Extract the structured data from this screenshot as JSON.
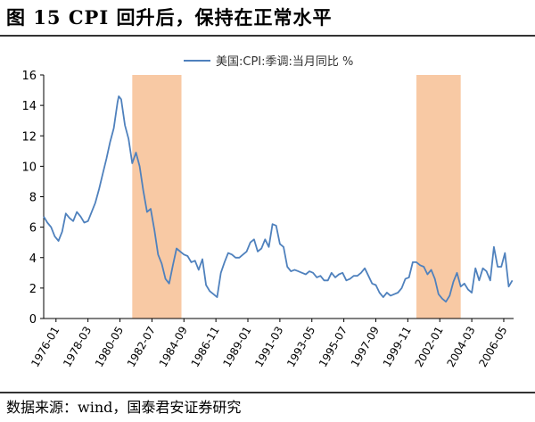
{
  "page": {
    "title": "图 15   CPI 回升后，保持在正常水平",
    "source": "数据来源：wind，国泰君安证券研究"
  },
  "colors": {
    "line": "#4f81bd",
    "shade": "#f8c9a4",
    "axis": "#000000",
    "rule": "#333333"
  },
  "chart_data": {
    "type": "line",
    "title": "",
    "xlabel": "",
    "ylabel": "",
    "ylim": [
      0,
      16
    ],
    "yticks": [
      0,
      2,
      4,
      6,
      8,
      10,
      12,
      14,
      16
    ],
    "xlim": [
      "1975-03",
      "2007-01"
    ],
    "xticks": [
      "1976-01",
      "1978-03",
      "1980-05",
      "1982-07",
      "1984-09",
      "1986-11",
      "1989-01",
      "1991-03",
      "1993-05",
      "1995-07",
      "1997-09",
      "1999-11",
      "2002-01",
      "2004-03",
      "2006-05"
    ],
    "grid": false,
    "legend": "top-center",
    "shaded_periods": [
      {
        "start": "1981-03",
        "end": "1984-07"
      },
      {
        "start": "2000-06",
        "end": "2003-06"
      }
    ],
    "series": [
      {
        "name": "美国:CPI:季调:当月同比 %",
        "points": [
          [
            "1975-03",
            6.7
          ],
          [
            "1975-06",
            6.3
          ],
          [
            "1975-09",
            6.0
          ],
          [
            "1975-12",
            5.4
          ],
          [
            "1976-03",
            5.1
          ],
          [
            "1976-06",
            5.7
          ],
          [
            "1976-09",
            6.9
          ],
          [
            "1976-12",
            6.6
          ],
          [
            "1977-03",
            6.4
          ],
          [
            "1977-06",
            7.0
          ],
          [
            "1977-09",
            6.7
          ],
          [
            "1977-12",
            6.3
          ],
          [
            "1978-03",
            6.4
          ],
          [
            "1978-06",
            7.0
          ],
          [
            "1978-09",
            7.6
          ],
          [
            "1978-12",
            8.5
          ],
          [
            "1979-03",
            9.5
          ],
          [
            "1979-06",
            10.5
          ],
          [
            "1979-09",
            11.6
          ],
          [
            "1979-12",
            12.5
          ],
          [
            "1980-03",
            14.2
          ],
          [
            "1980-04",
            14.6
          ],
          [
            "1980-06",
            14.4
          ],
          [
            "1980-09",
            12.7
          ],
          [
            "1980-12",
            11.8
          ],
          [
            "1981-03",
            10.2
          ],
          [
            "1981-06",
            10.9
          ],
          [
            "1981-09",
            10.0
          ],
          [
            "1981-12",
            8.4
          ],
          [
            "1982-03",
            7.0
          ],
          [
            "1982-06",
            7.2
          ],
          [
            "1982-09",
            5.8
          ],
          [
            "1982-12",
            4.2
          ],
          [
            "1983-03",
            3.6
          ],
          [
            "1983-06",
            2.6
          ],
          [
            "1983-09",
            2.3
          ],
          [
            "1983-12",
            3.5
          ],
          [
            "1984-03",
            4.6
          ],
          [
            "1984-06",
            4.4
          ],
          [
            "1984-09",
            4.2
          ],
          [
            "1984-12",
            4.1
          ],
          [
            "1985-03",
            3.7
          ],
          [
            "1985-06",
            3.8
          ],
          [
            "1985-09",
            3.2
          ],
          [
            "1985-12",
            3.9
          ],
          [
            "1986-03",
            2.2
          ],
          [
            "1986-06",
            1.8
          ],
          [
            "1986-09",
            1.6
          ],
          [
            "1986-12",
            1.4
          ],
          [
            "1987-03",
            3.0
          ],
          [
            "1987-06",
            3.7
          ],
          [
            "1987-09",
            4.3
          ],
          [
            "1987-12",
            4.2
          ],
          [
            "1988-03",
            4.0
          ],
          [
            "1988-06",
            4.0
          ],
          [
            "1988-09",
            4.2
          ],
          [
            "1988-12",
            4.4
          ],
          [
            "1989-03",
            5.0
          ],
          [
            "1989-06",
            5.2
          ],
          [
            "1989-09",
            4.4
          ],
          [
            "1989-12",
            4.6
          ],
          [
            "1990-03",
            5.2
          ],
          [
            "1990-06",
            4.7
          ],
          [
            "1990-09",
            6.2
          ],
          [
            "1990-12",
            6.1
          ],
          [
            "1991-03",
            4.9
          ],
          [
            "1991-06",
            4.7
          ],
          [
            "1991-09",
            3.4
          ],
          [
            "1991-12",
            3.1
          ],
          [
            "1992-03",
            3.2
          ],
          [
            "1992-06",
            3.1
          ],
          [
            "1992-09",
            3.0
          ],
          [
            "1992-12",
            2.9
          ],
          [
            "1993-03",
            3.1
          ],
          [
            "1993-06",
            3.0
          ],
          [
            "1993-09",
            2.7
          ],
          [
            "1993-12",
            2.8
          ],
          [
            "1994-03",
            2.5
          ],
          [
            "1994-06",
            2.5
          ],
          [
            "1994-09",
            3.0
          ],
          [
            "1994-12",
            2.7
          ],
          [
            "1995-03",
            2.9
          ],
          [
            "1995-06",
            3.0
          ],
          [
            "1995-09",
            2.5
          ],
          [
            "1995-12",
            2.6
          ],
          [
            "1996-03",
            2.8
          ],
          [
            "1996-06",
            2.8
          ],
          [
            "1996-09",
            3.0
          ],
          [
            "1996-12",
            3.3
          ],
          [
            "1997-03",
            2.8
          ],
          [
            "1997-06",
            2.3
          ],
          [
            "1997-09",
            2.2
          ],
          [
            "1997-12",
            1.7
          ],
          [
            "1998-03",
            1.4
          ],
          [
            "1998-06",
            1.7
          ],
          [
            "1998-09",
            1.5
          ],
          [
            "1998-12",
            1.6
          ],
          [
            "1999-03",
            1.7
          ],
          [
            "1999-06",
            2.0
          ],
          [
            "1999-09",
            2.6
          ],
          [
            "1999-12",
            2.7
          ],
          [
            "2000-03",
            3.7
          ],
          [
            "2000-06",
            3.7
          ],
          [
            "2000-09",
            3.5
          ],
          [
            "2000-12",
            3.4
          ],
          [
            "2001-03",
            2.9
          ],
          [
            "2001-06",
            3.2
          ],
          [
            "2001-09",
            2.6
          ],
          [
            "2001-12",
            1.6
          ],
          [
            "2002-03",
            1.3
          ],
          [
            "2002-06",
            1.1
          ],
          [
            "2002-09",
            1.5
          ],
          [
            "2002-12",
            2.4
          ],
          [
            "2003-03",
            3.0
          ],
          [
            "2003-06",
            2.1
          ],
          [
            "2003-09",
            2.3
          ],
          [
            "2003-12",
            1.9
          ],
          [
            "2004-03",
            1.7
          ],
          [
            "2004-06",
            3.3
          ],
          [
            "2004-09",
            2.5
          ],
          [
            "2004-12",
            3.3
          ],
          [
            "2005-03",
            3.1
          ],
          [
            "2005-06",
            2.5
          ],
          [
            "2005-09",
            4.7
          ],
          [
            "2005-12",
            3.4
          ],
          [
            "2006-03",
            3.4
          ],
          [
            "2006-06",
            4.3
          ],
          [
            "2006-09",
            2.1
          ],
          [
            "2006-12",
            2.5
          ]
        ]
      }
    ]
  }
}
